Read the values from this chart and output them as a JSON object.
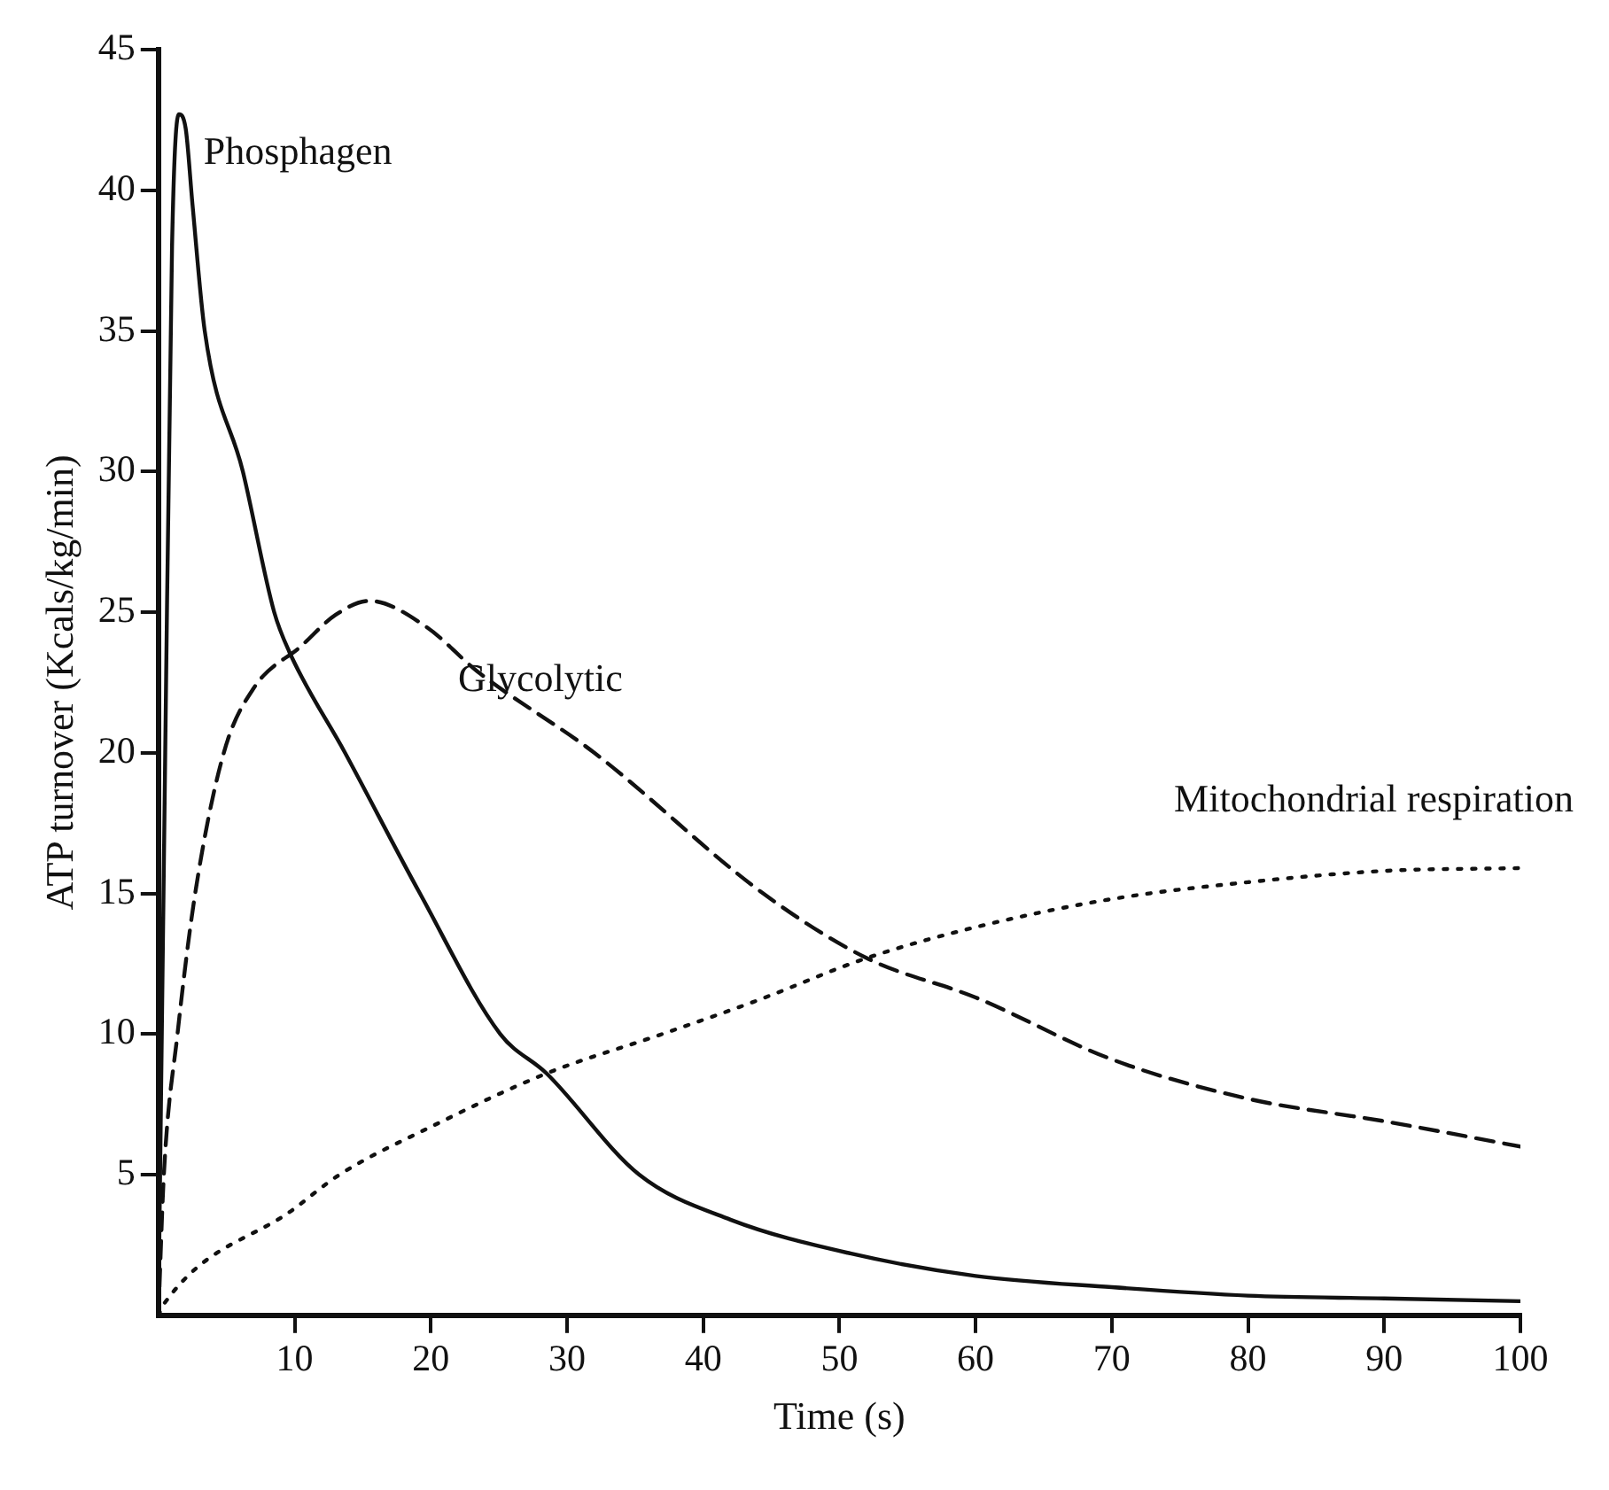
{
  "chart_data": {
    "type": "line",
    "xlabel": "Time (s)",
    "ylabel": "ATP turnover (Kcals/kg/min)",
    "xlim": [
      0,
      100
    ],
    "xticks": [
      10,
      20,
      30,
      40,
      50,
      60,
      70,
      80,
      90,
      100
    ],
    "ylim": [
      0,
      45
    ],
    "yticks": [
      5,
      10,
      15,
      20,
      25,
      30,
      35,
      40,
      45
    ],
    "grid": false,
    "legend": false,
    "marker": "none",
    "series": [
      {
        "name": "Phosphagen",
        "color": "#111111",
        "line_style": "solid",
        "x": [
          0,
          0.5,
          1,
          1.5,
          2,
          2.5,
          3.4,
          6.2,
          8.5,
          9.6,
          13.7,
          19.2,
          25.1,
          28.5,
          35.3,
          42,
          50.8,
          60,
          70,
          80,
          90,
          100
        ],
        "values": [
          0,
          20,
          38,
          42.7,
          42.2,
          39.5,
          35,
          30,
          25,
          23.6,
          20,
          15,
          10,
          8.6,
          5,
          3.4,
          2.2,
          1.4,
          1,
          0.7,
          0.6,
          0.5
        ]
      },
      {
        "name": "Glycolytic",
        "color": "#111111",
        "line_style": "dashed",
        "x": [
          0,
          0.4,
          1.4,
          2.7,
          4.8,
          7,
          10.5,
          13,
          15.5,
          19.6,
          23.4,
          32,
          44.4,
          52,
          60,
          70,
          80,
          90,
          100
        ],
        "values": [
          0,
          5,
          10,
          15,
          20,
          22.3,
          23.8,
          24.9,
          25.4,
          24.5,
          22.9,
          20,
          15,
          12.7,
          11.3,
          9.1,
          7.7,
          6.9,
          6
        ]
      },
      {
        "name": "Mitochondrial respiration",
        "color": "#111111",
        "line_style": "dotted",
        "x": [
          0,
          0.4,
          10,
          13.3,
          20,
          28.5,
          37,
          44,
          52,
          60,
          70,
          80,
          90,
          100
        ],
        "values": [
          0,
          0.4,
          3.8,
          5,
          6.7,
          8.6,
          10,
          11.2,
          12.7,
          13.8,
          14.8,
          15.4,
          15.8,
          15.9
        ]
      }
    ]
  }
}
